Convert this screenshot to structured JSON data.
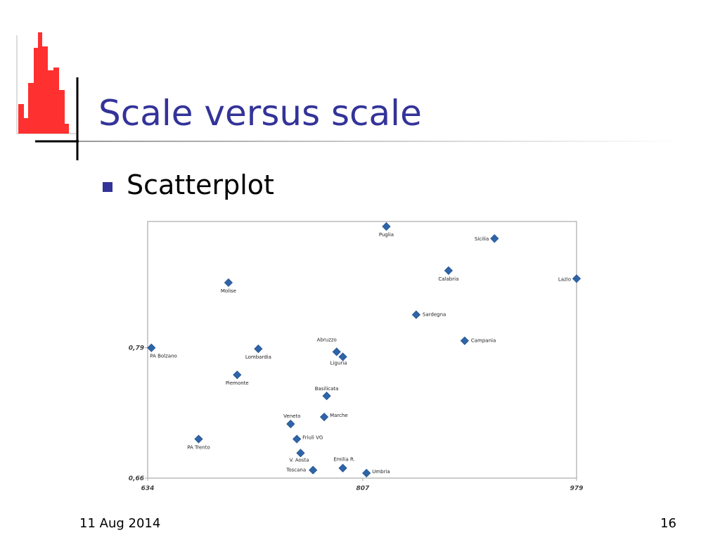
{
  "slide": {
    "title": "Scale versus scale",
    "bullet": "Scatterplot",
    "date": "11 Aug 2014",
    "page": "16"
  },
  "chart_data": {
    "type": "scatter",
    "labels": [
      "Puglia",
      "Sicilia",
      "Calabria",
      "Lazio",
      "Molise",
      "Sardegna",
      "Campania",
      "PA Bolzano",
      "Lombardia",
      "Abruzzo",
      "Liguria",
      "Piemonte",
      "Basilicata",
      "Marche",
      "Veneto",
      "PA Trento",
      "Friuli VG",
      "V. Aosta",
      "Toscana",
      "Emilia R.",
      "Umbria"
    ],
    "x": [
      826,
      913,
      876,
      979,
      699,
      850,
      889,
      637,
      723,
      786,
      791,
      706,
      778,
      776,
      749,
      675,
      754,
      757,
      767,
      791,
      810
    ],
    "values": [
      0.911,
      0.899,
      0.867,
      0.859,
      0.855,
      0.823,
      0.797,
      0.79,
      0.789,
      0.786,
      0.781,
      0.763,
      0.742,
      0.721,
      0.714,
      0.699,
      0.699,
      0.685,
      0.668,
      0.67,
      0.665
    ],
    "color": "#2e64a8",
    "xlim": [
      634,
      979
    ],
    "xticks": [
      634,
      807,
      979
    ],
    "ylim": [
      0.66,
      0.916
    ],
    "yticks": [
      {
        "value": 0.66,
        "label": "0,66"
      },
      {
        "value": 0.79,
        "label": "0,79"
      }
    ],
    "grid": false
  }
}
